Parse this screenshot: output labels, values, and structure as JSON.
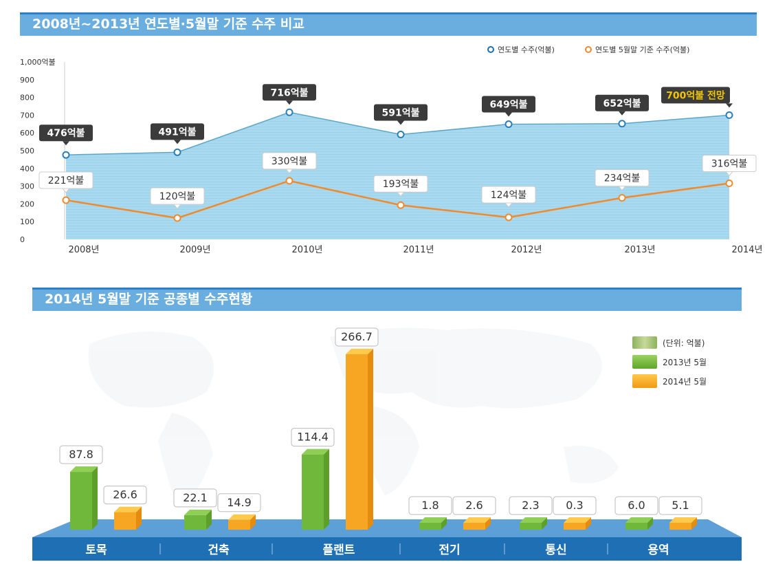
{
  "panel1": {
    "title": "2008년~2013년 연도별·5월말 기준 수주 비교"
  },
  "panel2": {
    "title": "2014년 5월말 기준 공종별 수주현황"
  },
  "legend1": {
    "series_a": "연도별 수주(억불)",
    "series_b": "연도별 5월말 기준 수주(억불)"
  },
  "legend2": {
    "unit": "(단위: 억불)",
    "series_a": "2013년 5월",
    "series_b": "2014년 5월"
  },
  "colors": {
    "header": "#6aaee0",
    "area": "#a8d8ee",
    "line_blue": "#5aa6c8",
    "line_orange": "#f08a2c",
    "bar_green": "#7cc242",
    "bar_orange": "#f7a823",
    "base_bar": "#1f6fb4",
    "highlight": "#f2c500"
  },
  "chart_data": [
    {
      "type": "area",
      "x": [
        "2008년",
        "2009년",
        "2010년",
        "2011년",
        "2012년",
        "2013년",
        "2014년"
      ],
      "ylim": [
        0,
        1000
      ],
      "yticks": [
        "0",
        "100",
        "200",
        "300",
        "400",
        "500",
        "600",
        "700",
        "800",
        "900",
        "1,000억불"
      ],
      "series": [
        {
          "name": "연도별 수주(억불)",
          "values": [
            476,
            491,
            716,
            591,
            649,
            652,
            700
          ],
          "labels": [
            "476억불",
            "491억불",
            "716억불",
            "591억불",
            "649억불",
            "652억불",
            "700억불 전망"
          ]
        },
        {
          "name": "연도별 5월말 기준 수주(억불)",
          "values": [
            221,
            120,
            330,
            193,
            124,
            234,
            316
          ],
          "labels": [
            "221억불",
            "120억불",
            "330억불",
            "193억불",
            "124억불",
            "234억불",
            "316억불"
          ]
        }
      ]
    },
    {
      "type": "bar",
      "categories": [
        "토목",
        "건축",
        "플랜트",
        "전기",
        "통신",
        "용역"
      ],
      "series": [
        {
          "name": "2013년 5월",
          "values": [
            87.8,
            22.1,
            114.4,
            1.8,
            2.3,
            6.0
          ],
          "labels": [
            "87.8",
            "22.1",
            "114.4",
            "1.8",
            "2.3",
            "6.0"
          ]
        },
        {
          "name": "2014년 5월",
          "values": [
            26.6,
            14.9,
            266.7,
            2.6,
            0.3,
            5.1
          ],
          "labels": [
            "26.6",
            "14.9",
            "266.7",
            "2.6",
            "0.3",
            "5.1"
          ]
        }
      ]
    }
  ]
}
